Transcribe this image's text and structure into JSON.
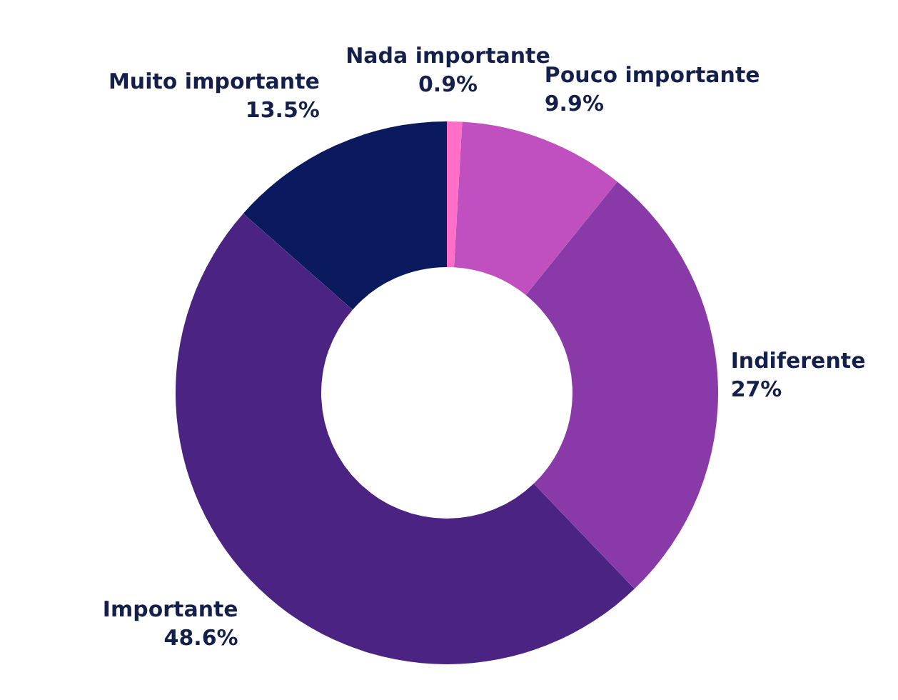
{
  "chart_data": {
    "type": "donut",
    "categories": [
      "Nada importante",
      "Pouco importante",
      "Indiferente",
      "Importante",
      "Muito importante"
    ],
    "values": [
      0.9,
      9.9,
      27,
      48.6,
      13.5
    ],
    "colors": [
      "#ff6ec7",
      "#c04fc0",
      "#8a3aa8",
      "#4a2383",
      "#0b1a5e"
    ],
    "value_labels": [
      "0.9%",
      "9.9%",
      "27%",
      "48.6%",
      "13.5%"
    ]
  }
}
